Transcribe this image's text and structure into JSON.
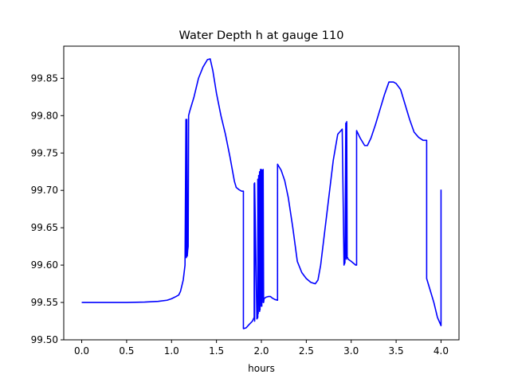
{
  "chart_data": {
    "type": "line",
    "title": "Water Depth h at gauge 110",
    "xlabel": "hours",
    "ylabel": "",
    "xlim": [
      -0.2,
      4.2
    ],
    "ylim": [
      99.5,
      99.893
    ],
    "xticks": [
      0.0,
      0.5,
      1.0,
      1.5,
      2.0,
      2.5,
      3.0,
      3.5,
      4.0
    ],
    "xtick_labels": [
      "0.0",
      "0.5",
      "1.0",
      "1.5",
      "2.0",
      "2.5",
      "3.0",
      "3.5",
      "4.0"
    ],
    "yticks": [
      99.5,
      99.55,
      99.6,
      99.65,
      99.7,
      99.75,
      99.8,
      99.85
    ],
    "ytick_labels": [
      "99.50",
      "99.55",
      "99.60",
      "99.65",
      "99.70",
      "99.75",
      "99.80",
      "99.85"
    ],
    "grid": false,
    "series": [
      {
        "color": "#0000ff",
        "x": [
          0.0,
          0.3,
          0.5,
          0.7,
          0.85,
          0.95,
          1.0,
          1.05,
          1.08,
          1.1,
          1.13,
          1.15,
          1.16,
          1.165,
          1.17,
          1.175,
          1.18,
          1.185,
          1.19,
          1.2,
          1.25,
          1.3,
          1.35,
          1.4,
          1.43,
          1.46,
          1.5,
          1.55,
          1.6,
          1.65,
          1.7,
          1.72,
          1.75,
          1.78,
          1.8,
          1.8,
          1.83,
          1.86,
          1.9,
          1.92,
          1.92,
          1.925,
          1.925,
          1.95,
          1.96,
          1.96,
          1.965,
          1.97,
          1.98,
          1.98,
          1.985,
          1.99,
          2.0,
          2.0,
          2.005,
          2.01,
          2.02,
          2.02,
          2.025,
          2.03,
          2.05,
          2.08,
          2.1,
          2.12,
          2.15,
          2.18,
          2.18,
          2.22,
          2.26,
          2.3,
          2.35,
          2.4,
          2.45,
          2.5,
          2.55,
          2.6,
          2.63,
          2.66,
          2.7,
          2.75,
          2.8,
          2.85,
          2.9,
          2.92,
          2.925,
          2.93,
          2.94,
          2.945,
          2.95,
          2.955,
          2.96,
          2.965,
          3.0,
          3.05,
          3.06,
          3.06,
          3.1,
          3.15,
          3.18,
          3.22,
          3.27,
          3.32,
          3.37,
          3.42,
          3.47,
          3.5,
          3.55,
          3.6,
          3.65,
          3.7,
          3.75,
          3.8,
          3.84,
          3.84,
          3.88,
          3.92,
          3.96,
          4.0,
          4.0
        ],
        "y": [
          99.55,
          99.55,
          99.55,
          99.5505,
          99.5515,
          99.553,
          99.555,
          99.558,
          99.56,
          99.565,
          99.58,
          99.6,
          99.795,
          99.61,
          99.795,
          99.612,
          99.62,
          99.625,
          99.8,
          99.805,
          99.825,
          99.85,
          99.865,
          99.875,
          99.876,
          99.86,
          99.83,
          99.8,
          99.775,
          99.745,
          99.712,
          99.704,
          99.701,
          99.699,
          99.699,
          99.515,
          99.516,
          99.52,
          99.525,
          99.53,
          99.709,
          99.525,
          99.71,
          99.528,
          99.53,
          99.715,
          99.535,
          99.72,
          99.538,
          99.725,
          99.54,
          99.728,
          99.545,
          99.728,
          99.545,
          99.727,
          99.55,
          99.728,
          99.55,
          99.555,
          99.557,
          99.558,
          99.558,
          99.556,
          99.554,
          99.553,
          99.735,
          99.727,
          99.713,
          99.69,
          99.65,
          99.605,
          99.59,
          99.582,
          99.577,
          99.575,
          99.58,
          99.6,
          99.64,
          99.69,
          99.74,
          99.775,
          99.782,
          99.6,
          99.602,
          99.603,
          99.79,
          99.608,
          99.792,
          99.61,
          99.61,
          99.608,
          99.605,
          99.6,
          99.6,
          99.78,
          99.77,
          99.76,
          99.76,
          99.77,
          99.788,
          99.808,
          99.828,
          99.845,
          99.845,
          99.843,
          99.835,
          99.815,
          99.795,
          99.778,
          99.771,
          99.767,
          99.767,
          99.582,
          99.566,
          99.55,
          99.53,
          99.519,
          99.701
        ]
      }
    ]
  }
}
